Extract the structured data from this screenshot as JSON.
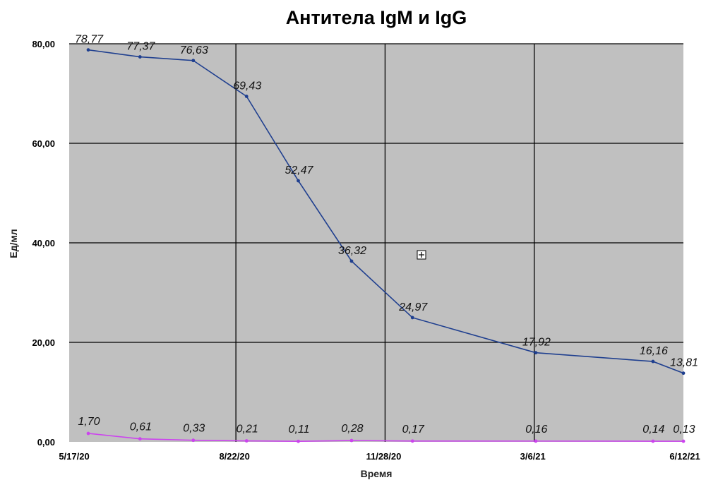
{
  "chart_data": {
    "type": "line",
    "title": "Антитела IgM и IgG",
    "xlabel": "Время",
    "ylabel": "Ед/мл",
    "x_tick_labels": [
      "5/17/20",
      "8/22/20",
      "11/28/20",
      "3/6/21",
      "6/12/21"
    ],
    "y_tick_labels": [
      "0,00",
      "20,00",
      "40,00",
      "60,00",
      "80,00"
    ],
    "ylim": [
      0,
      80
    ],
    "grid": true,
    "legend": "none",
    "series": [
      {
        "color": "#1f3f8f",
        "x": [
          "5/17/20",
          "6/20/20",
          "7/25/20",
          "8/29/20",
          "10/2/20",
          "11/6/20",
          "12/16/20",
          "3/7/21",
          "5/23/21",
          "6/12/21"
        ],
        "values": [
          78.77,
          77.37,
          76.63,
          69.43,
          52.47,
          36.32,
          24.97,
          17.92,
          16.16,
          13.81
        ],
        "labels": [
          "78,77",
          "77,37",
          "76,63",
          "69,43",
          "52,47",
          "36,32",
          "24,97",
          "17,92",
          "16,16",
          "13,81"
        ]
      },
      {
        "color": "#cc44ee",
        "x": [
          "5/17/20",
          "6/20/20",
          "7/25/20",
          "8/29/20",
          "10/2/20",
          "11/6/20",
          "12/16/20",
          "3/7/21",
          "5/23/21",
          "6/12/21"
        ],
        "values": [
          1.7,
          0.61,
          0.33,
          0.21,
          0.11,
          0.28,
          0.17,
          0.16,
          0.14,
          0.13
        ],
        "labels": [
          "1,70",
          "0,61",
          "0,33",
          "0,21",
          "0,11",
          "0,28",
          "0,17",
          "0,16",
          "0,14",
          "0,13"
        ]
      }
    ]
  },
  "cursor_icon": "crosshair-plus-icon"
}
